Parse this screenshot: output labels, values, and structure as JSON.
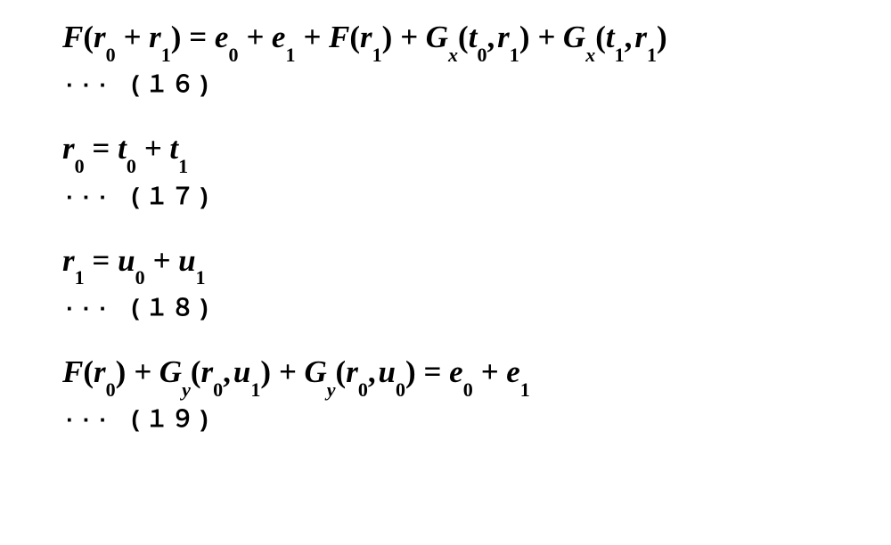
{
  "equations": [
    {
      "lhs": "F(r₀ + r₁)",
      "rhs": "e₀ + e₁ + F(r₁) + Gₓ(t₀, r₁) + Gₓ(t₁, r₁)",
      "label": "··· (１６)"
    },
    {
      "lhs": "r₀",
      "rhs": "t₀ + t₁",
      "label": "··· (１７)"
    },
    {
      "lhs": "r₁",
      "rhs": "u₀ + u₁",
      "label": "··· (１８)"
    },
    {
      "lhs": "F(r₀) + G_y(r₀, u₁) + G_y(r₀, u₀)",
      "rhs": "e₀ + e₁",
      "label": "··· (１９)"
    }
  ],
  "style": {
    "text_color": "#000000",
    "background_color": "#ffffff",
    "eq_fontsize_pt": 26,
    "label_fontsize_pt": 19,
    "font_family": "Times New Roman, serif",
    "label_font_family": "Courier New, monospace",
    "italic": true
  }
}
